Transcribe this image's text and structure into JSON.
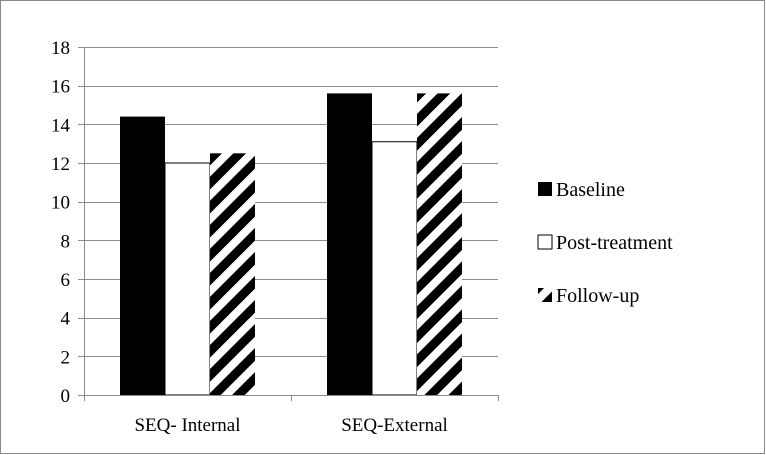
{
  "chart_data": {
    "type": "bar",
    "categories": [
      "SEQ- Internal",
      "SEQ-External"
    ],
    "series": [
      {
        "name": "Baseline",
        "values": [
          14.4,
          15.6
        ],
        "fill": "solid-black"
      },
      {
        "name": "Post-treatment",
        "values": [
          12.0,
          13.1
        ],
        "fill": "white"
      },
      {
        "name": "Follow-up",
        "values": [
          12.5,
          15.6
        ],
        "fill": "diagonal-stripes"
      }
    ],
    "ylim": [
      0,
      18
    ],
    "yticks": [
      "0",
      "2",
      "4",
      "6",
      "8",
      "10",
      "12",
      "14",
      "16",
      "18"
    ],
    "grid": true,
    "legend_position": "right",
    "colors": {
      "baseline": "#000000",
      "post": "#ffffff",
      "stripe": "#000000",
      "grid": "#8c8c8c",
      "axis": "#8c8c8c"
    }
  }
}
